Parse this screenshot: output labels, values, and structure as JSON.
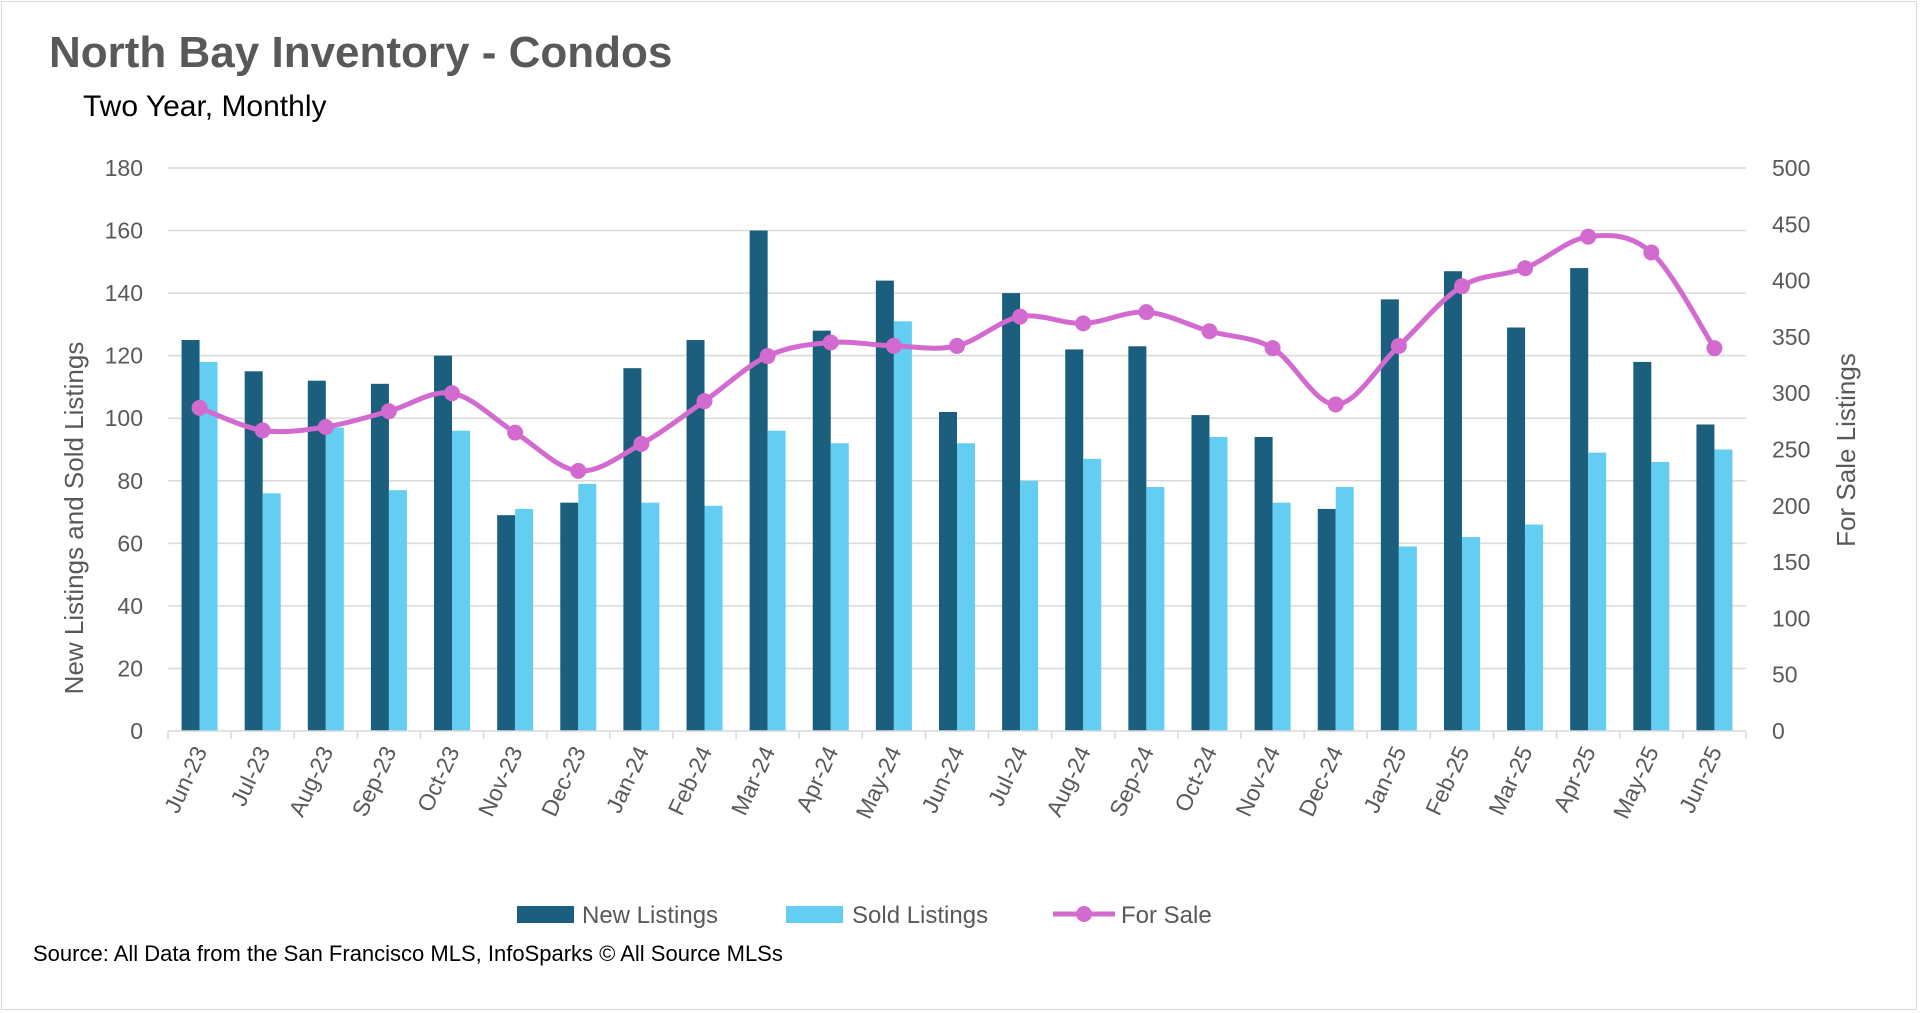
{
  "title": "North Bay Inventory - Condos",
  "subtitle": "Two Year, Monthly",
  "source": "Source: All Data from the San Francisco MLS, InfoSparks © All Source MLSs",
  "colors": {
    "new_listings": "#1b5e7d",
    "sold_listings": "#64cdf2",
    "for_sale": "#d36ad0",
    "gridline": "#d9d9d9",
    "text": "#595959"
  },
  "chart_data": {
    "type": "bar",
    "categories": [
      "Jun-23",
      "Jul-23",
      "Aug-23",
      "Sep-23",
      "Oct-23",
      "Nov-23",
      "Dec-23",
      "Jan-24",
      "Feb-24",
      "Mar-24",
      "Apr-24",
      "May-24",
      "Jun-24",
      "Jul-24",
      "Aug-24",
      "Sep-24",
      "Oct-24",
      "Nov-24",
      "Dec-24",
      "Jan-25",
      "Feb-25",
      "Mar-25",
      "Apr-25",
      "May-25",
      "Jun-25"
    ],
    "series": [
      {
        "name": "New Listings",
        "type": "bar",
        "axis": "left",
        "values": [
          125,
          115,
          112,
          111,
          120,
          69,
          73,
          116,
          125,
          160,
          128,
          144,
          102,
          140,
          122,
          123,
          101,
          94,
          71,
          138,
          147,
          129,
          148,
          118,
          98
        ]
      },
      {
        "name": "Sold Listings",
        "type": "bar",
        "axis": "left",
        "values": [
          118,
          76,
          97,
          77,
          96,
          71,
          79,
          73,
          72,
          96,
          92,
          131,
          92,
          80,
          87,
          78,
          94,
          73,
          78,
          59,
          62,
          66,
          89,
          86,
          90
        ]
      },
      {
        "name": "For Sale",
        "type": "line",
        "axis": "right",
        "values": [
          287,
          267,
          270,
          284,
          300,
          265,
          231,
          255,
          293,
          333,
          345,
          342,
          342,
          368,
          362,
          372,
          355,
          340,
          290,
          342,
          395,
          411,
          439,
          425,
          340
        ]
      }
    ],
    "ylabel": "New Listings and Sold Listings",
    "y2label": "For Sale Listings",
    "ylim": [
      0,
      180
    ],
    "y2lim": [
      0,
      500
    ],
    "yticks": [
      "0",
      "20",
      "40",
      "60",
      "80",
      "100",
      "120",
      "140",
      "160",
      "180"
    ],
    "y2ticks": [
      "0",
      "50",
      "100",
      "150",
      "200",
      "250",
      "300",
      "350",
      "400",
      "450",
      "500"
    ],
    "grid": true,
    "legend_position": "bottom"
  }
}
